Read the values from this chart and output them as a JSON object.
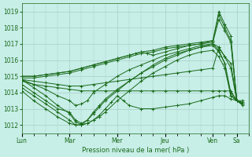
{
  "bg_color": "#c8eee8",
  "grid_color": "#a8cec8",
  "line_color": "#1a6b1a",
  "marker_color": "#1a6b1a",
  "ylim": [
    1011.5,
    1019.5
  ],
  "ylabel_ticks": [
    1012,
    1013,
    1014,
    1015,
    1016,
    1017,
    1018,
    1019
  ],
  "xlabel": "Pression niveau de la mer( hPa )",
  "xtick_labels": [
    "Lun",
    "Mar",
    "Mer",
    "Jeu",
    "Ven",
    "Sa"
  ],
  "xtick_positions": [
    0,
    24,
    48,
    72,
    96,
    108
  ],
  "xlim": [
    0,
    114
  ],
  "series": [
    {
      "x": [
        0,
        6,
        12,
        18,
        24,
        30,
        36,
        42,
        48,
        54,
        60,
        66,
        72,
        78,
        84,
        90,
        96,
        99,
        102,
        105,
        108,
        111
      ],
      "y": [
        1015.0,
        1015.0,
        1015.1,
        1015.2,
        1015.3,
        1015.5,
        1015.7,
        1015.9,
        1016.1,
        1016.3,
        1016.5,
        1016.6,
        1016.8,
        1016.9,
        1017.0,
        1017.1,
        1017.2,
        1019.0,
        1018.2,
        1017.5,
        1013.5,
        1013.4
      ]
    },
    {
      "x": [
        0,
        6,
        12,
        18,
        24,
        30,
        36,
        42,
        48,
        54,
        60,
        66,
        72,
        78,
        84,
        90,
        96,
        99,
        102,
        105,
        108,
        111
      ],
      "y": [
        1014.9,
        1014.9,
        1015.0,
        1015.1,
        1015.2,
        1015.4,
        1015.6,
        1015.8,
        1016.0,
        1016.2,
        1016.4,
        1016.5,
        1016.7,
        1016.8,
        1016.9,
        1017.0,
        1017.1,
        1018.5,
        1017.8,
        1017.1,
        1013.5,
        1013.3
      ]
    },
    {
      "x": [
        0,
        6,
        12,
        18,
        24,
        30,
        36,
        42,
        48,
        54,
        57,
        60,
        63,
        66,
        72,
        78,
        84,
        90,
        96,
        99,
        102,
        105,
        108,
        111
      ],
      "y": [
        1015.0,
        1015.0,
        1015.1,
        1015.2,
        1015.3,
        1015.5,
        1015.7,
        1015.9,
        1016.1,
        1016.3,
        1016.4,
        1016.5,
        1016.4,
        1016.3,
        1016.5,
        1016.7,
        1016.9,
        1017.0,
        1017.2,
        1018.8,
        1018.0,
        1017.2,
        1013.5,
        1013.3
      ]
    },
    {
      "x": [
        0,
        6,
        12,
        18,
        24,
        30,
        36,
        42,
        48,
        54,
        60,
        66,
        72,
        78,
        84,
        90,
        96,
        99,
        102,
        105,
        108,
        111
      ],
      "y": [
        1014.8,
        1014.7,
        1014.6,
        1014.5,
        1014.4,
        1014.4,
        1014.5,
        1014.6,
        1014.7,
        1014.8,
        1014.9,
        1015.0,
        1015.1,
        1015.2,
        1015.3,
        1015.4,
        1015.5,
        1016.8,
        1016.2,
        1015.8,
        1013.5,
        1013.5
      ]
    },
    {
      "x": [
        0,
        6,
        12,
        18,
        24,
        27,
        30,
        33,
        36,
        42,
        48,
        54,
        60,
        66,
        72,
        78,
        84,
        90,
        96,
        99,
        102,
        105,
        108,
        111
      ],
      "y": [
        1014.8,
        1014.5,
        1014.2,
        1013.8,
        1013.5,
        1013.2,
        1013.3,
        1013.5,
        1014.0,
        1014.5,
        1015.0,
        1015.4,
        1015.7,
        1016.0,
        1016.3,
        1016.5,
        1016.7,
        1016.9,
        1017.0,
        1016.8,
        1016.2,
        1015.5,
        1013.5,
        1013.2
      ]
    },
    {
      "x": [
        0,
        6,
        12,
        18,
        24,
        27,
        30,
        33,
        36,
        39,
        42,
        48,
        54,
        60,
        66,
        72,
        78,
        84,
        90,
        96,
        99,
        102,
        105,
        108,
        111
      ],
      "y": [
        1014.5,
        1014.0,
        1013.5,
        1013.0,
        1012.8,
        1012.3,
        1012.1,
        1012.3,
        1012.8,
        1013.2,
        1013.6,
        1014.2,
        1014.7,
        1015.2,
        1015.7,
        1016.1,
        1016.4,
        1016.6,
        1016.8,
        1016.9,
        1016.5,
        1015.8,
        1014.0,
        1013.5,
        1013.3
      ]
    },
    {
      "x": [
        0,
        6,
        12,
        18,
        24,
        27,
        30,
        33,
        36,
        39,
        42,
        48,
        54,
        60,
        66,
        72,
        78,
        84,
        90,
        96,
        99,
        102,
        105,
        108,
        111
      ],
      "y": [
        1014.3,
        1013.8,
        1013.3,
        1012.8,
        1012.3,
        1012.0,
        1012.0,
        1012.3,
        1012.7,
        1013.1,
        1013.5,
        1014.1,
        1014.7,
        1015.2,
        1015.6,
        1016.0,
        1016.3,
        1016.6,
        1016.8,
        1017.0,
        1016.6,
        1015.8,
        1013.8,
        1013.5,
        1013.3
      ]
    },
    {
      "x": [
        0,
        6,
        12,
        18,
        24,
        27,
        30,
        33,
        36,
        39,
        42,
        48,
        54,
        60,
        66,
        72,
        78,
        84,
        90,
        96,
        99,
        102,
        105,
        108,
        111
      ],
      "y": [
        1014.1,
        1013.5,
        1013.0,
        1012.5,
        1012.1,
        1012.0,
        1012.0,
        1012.1,
        1012.3,
        1012.5,
        1012.8,
        1013.5,
        1014.1,
        1014.7,
        1015.2,
        1015.6,
        1016.0,
        1016.3,
        1016.5,
        1016.6,
        1016.2,
        1015.5,
        1013.8,
        1013.5,
        1013.3
      ]
    },
    {
      "x": [
        0,
        6,
        12,
        18,
        24,
        27,
        30,
        33,
        36,
        39,
        42,
        45,
        48,
        51,
        54,
        60,
        66,
        72,
        78,
        84,
        90,
        96,
        99,
        102,
        105,
        108,
        111
      ],
      "y": [
        1014.8,
        1014.3,
        1013.8,
        1013.2,
        1012.7,
        1012.2,
        1012.0,
        1012.1,
        1012.3,
        1012.6,
        1013.0,
        1013.4,
        1013.8,
        1013.5,
        1013.2,
        1013.0,
        1013.0,
        1013.1,
        1013.2,
        1013.3,
        1013.5,
        1013.7,
        1013.8,
        1013.8,
        1013.6,
        1013.5,
        1013.3
      ]
    },
    {
      "x": [
        0,
        6,
        12,
        18,
        24,
        30,
        36,
        42,
        48,
        54,
        60,
        66,
        72,
        78,
        84,
        90,
        96,
        99,
        102,
        105,
        108,
        111
      ],
      "y": [
        1014.7,
        1014.5,
        1014.4,
        1014.3,
        1014.2,
        1014.1,
        1014.1,
        1014.1,
        1014.1,
        1014.1,
        1014.1,
        1014.1,
        1014.1,
        1014.1,
        1014.1,
        1014.1,
        1014.1,
        1014.1,
        1014.1,
        1014.1,
        1013.5,
        1013.3
      ]
    }
  ]
}
